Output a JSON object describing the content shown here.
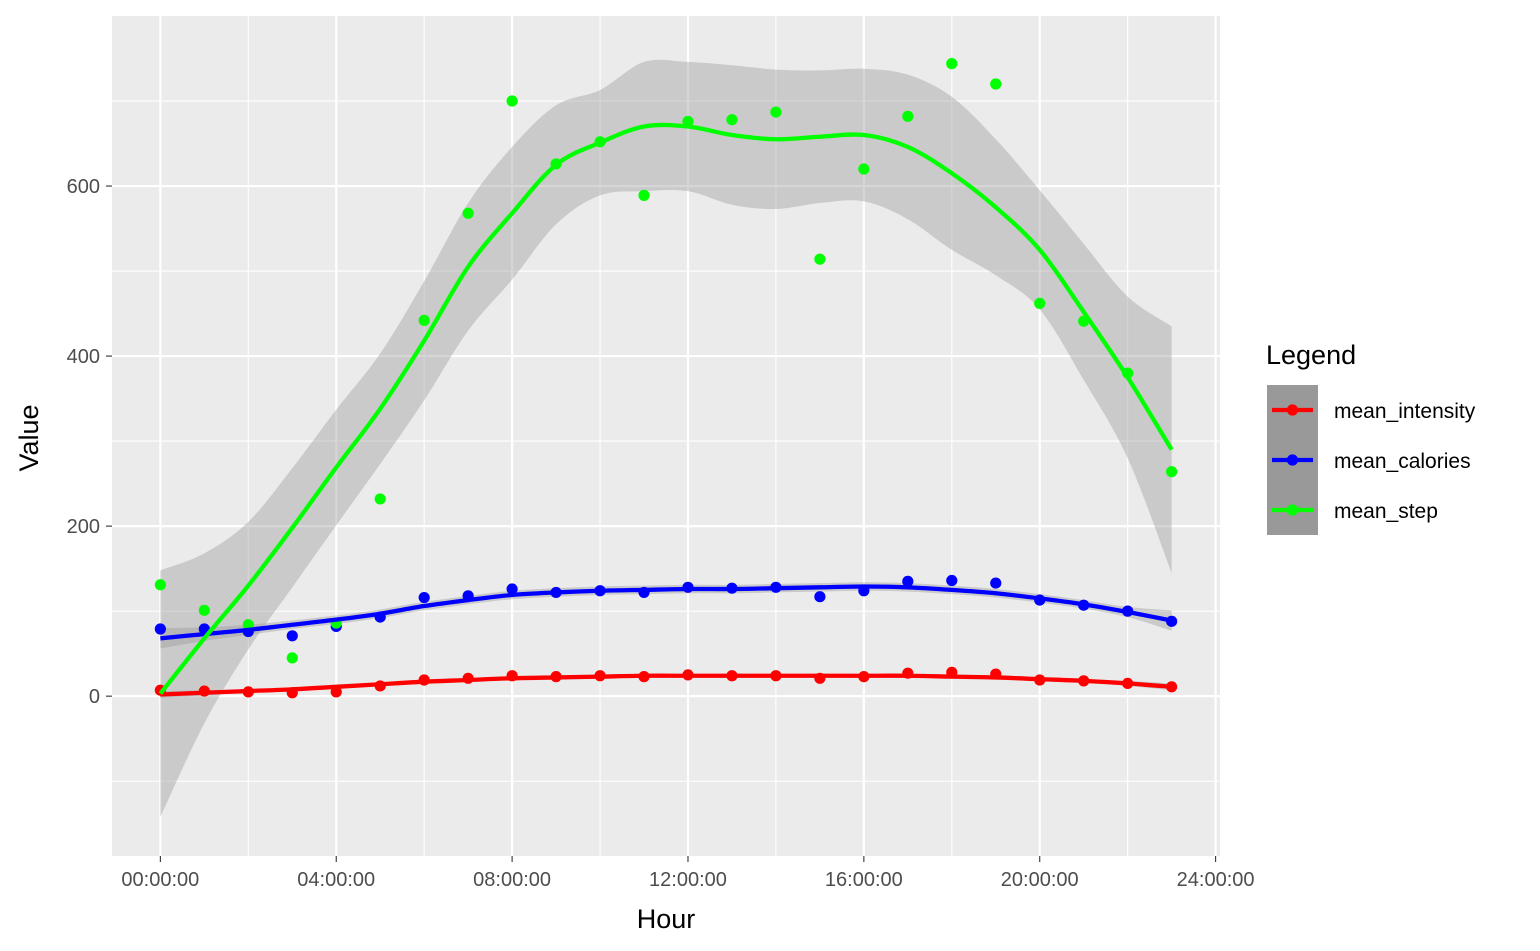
{
  "chart_data": {
    "type": "scatter",
    "xlabel": "Hour",
    "ylabel": "Value",
    "x_tick_labels": [
      "00:00:00",
      "04:00:00",
      "08:00:00",
      "12:00:00",
      "16:00:00",
      "20:00:00",
      "24:00:00"
    ],
    "x_ticks_hours": [
      0,
      4,
      8,
      12,
      16,
      20,
      24
    ],
    "y_ticks": [
      0,
      200,
      400,
      600
    ],
    "xlim_hours": [
      -1.1,
      24.1
    ],
    "ylim": [
      -188,
      800
    ],
    "grid": true,
    "smoother": "loess with grey confidence band",
    "legend": {
      "title": "Legend",
      "position": "right",
      "entries": [
        {
          "label": "mean_intensity",
          "color": "#ff0000"
        },
        {
          "label": "mean_calories",
          "color": "#0000ff"
        },
        {
          "label": "mean_step",
          "color": "#00ff00"
        }
      ]
    },
    "x_hours": [
      0,
      1,
      2,
      3,
      4,
      5,
      6,
      7,
      8,
      9,
      10,
      11,
      12,
      13,
      14,
      15,
      16,
      17,
      18,
      19,
      20,
      21,
      22,
      23
    ],
    "series": [
      {
        "name": "mean_intensity",
        "color": "#ff0000",
        "values": [
          7,
          6,
          5,
          4,
          5,
          12,
          19,
          21,
          24,
          23,
          24,
          23,
          25,
          24,
          24,
          21,
          23,
          27,
          28,
          26,
          19,
          18,
          15,
          11
        ],
        "fit": [
          2,
          4,
          6,
          8,
          11,
          14,
          17,
          19,
          21,
          22,
          23,
          24,
          24,
          24,
          24,
          24,
          24,
          24,
          23,
          22,
          20,
          18,
          15,
          11
        ],
        "band_halfwidth": [
          4,
          3,
          2,
          2,
          2,
          2,
          2,
          2,
          2,
          2,
          2,
          2,
          2,
          2,
          2,
          2,
          2,
          2,
          2,
          2,
          2,
          2,
          3,
          4
        ]
      },
      {
        "name": "mean_calories",
        "color": "#0000ff",
        "values": [
          79,
          79,
          76,
          71,
          82,
          93,
          116,
          118,
          126,
          122,
          124,
          122,
          128,
          127,
          128,
          117,
          124,
          135,
          136,
          133,
          113,
          107,
          100,
          88
        ],
        "fit": [
          68,
          73,
          78,
          84,
          90,
          97,
          106,
          113,
          119,
          122,
          124,
          125,
          126,
          126,
          127,
          128,
          129,
          128,
          125,
          121,
          115,
          108,
          99,
          89
        ],
        "band_halfwidth": [
          12,
          8,
          6,
          5,
          5,
          5,
          5,
          5,
          5,
          5,
          5,
          5,
          5,
          5,
          5,
          5,
          5,
          5,
          5,
          5,
          5,
          5,
          6,
          12
        ]
      },
      {
        "name": "mean_step",
        "color": "#00ff00",
        "values": [
          131,
          101,
          84,
          45,
          86,
          232,
          442,
          568,
          700,
          626,
          652,
          589,
          676,
          678,
          687,
          514,
          620,
          682,
          744,
          720,
          462,
          441,
          380,
          264
        ],
        "fit": [
          3,
          68,
          130,
          198,
          269,
          338,
          418,
          505,
          568,
          625,
          651,
          670,
          670,
          660,
          655,
          658,
          660,
          646,
          615,
          575,
          525,
          452,
          375,
          290
        ],
        "band_halfwidth": [
          145,
          100,
          75,
          70,
          68,
          65,
          70,
          75,
          78,
          70,
          62,
          76,
          76,
          82,
          82,
          78,
          78,
          85,
          90,
          80,
          70,
          80,
          95,
          145
        ]
      }
    ]
  }
}
